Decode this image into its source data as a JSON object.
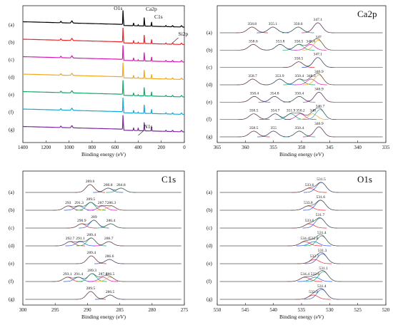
{
  "chart_data": [
    {
      "type": "line",
      "panel": "survey",
      "xlabel": "Binding energy (eV)",
      "xlim": [
        1400,
        0
      ],
      "xticks": [
        1400,
        1200,
        1000,
        800,
        600,
        400,
        200,
        0
      ],
      "rows": [
        "(a)",
        "(b)",
        "(c)",
        "(d)",
        "(e)",
        "(f)",
        "(g)"
      ],
      "series_colors": [
        "#000000",
        "#e8262b",
        "#d81ab4",
        "#f2a81d",
        "#12a86b",
        "#16a8d8",
        "#7a2aa0"
      ],
      "annotations": [
        {
          "text": "O1s",
          "x": 531
        },
        {
          "text": "Ca2p",
          "x": 347
        },
        {
          "text": "C1s",
          "x": 285
        },
        {
          "text": "Si2p",
          "x": 102
        },
        {
          "text": "N1s",
          "x": 400
        }
      ]
    },
    {
      "type": "line",
      "panel": "Ca2p",
      "title": "Ca2p",
      "xlabel": "Binding energy (eV)",
      "xlim": [
        365,
        335
      ],
      "xticks": [
        365,
        360,
        355,
        350,
        345,
        340,
        335
      ],
      "rows": [
        {
          "label": "(a)",
          "peaks": [
            "358.8",
            "355.1",
            "350.6",
            "347.1"
          ],
          "x": [
            358.8,
            355.1,
            350.6,
            347.1
          ]
        },
        {
          "label": "(b)",
          "peaks": [
            "358.6",
            "353.8",
            "350.5",
            "348.4",
            "347"
          ],
          "x": [
            358.6,
            353.8,
            350.5,
            348.4,
            347.0
          ]
        },
        {
          "label": "(c)",
          "peaks": [
            "350.5",
            "347.1"
          ],
          "x": [
            350.5,
            347.1
          ]
        },
        {
          "label": "(d)",
          "peaks": [
            "358.7",
            "353.9",
            "350.4",
            "348.3",
            "346.9"
          ],
          "x": [
            358.7,
            353.9,
            350.4,
            348.3,
            346.9
          ]
        },
        {
          "label": "(e)",
          "peaks": [
            "358.4",
            "354.8",
            "350.4",
            "346.9"
          ],
          "x": [
            358.4,
            354.8,
            350.4,
            346.9
          ]
        },
        {
          "label": "(f)",
          "peaks": [
            "358.5",
            "354.7",
            "351.9",
            "350.2",
            "348",
            "346.7"
          ],
          "x": [
            358.5,
            354.7,
            351.9,
            350.2,
            348.0,
            346.7
          ]
        },
        {
          "label": "(g)",
          "peaks": [
            "358.5",
            "355",
            "350.4",
            "346.9"
          ],
          "x": [
            358.5,
            355.0,
            350.4,
            346.9
          ]
        }
      ]
    },
    {
      "type": "line",
      "panel": "C1s",
      "title": "C1s",
      "xlabel": "Binding energy (eV)",
      "xlim": [
        300,
        275
      ],
      "xticks": [
        300,
        295,
        290,
        285,
        280,
        275
      ],
      "rows": [
        {
          "label": "(a)",
          "peaks": [
            "289.6",
            "286.8",
            "284.8"
          ],
          "x": [
            289.6,
            286.8,
            284.8
          ]
        },
        {
          "label": "(b)",
          "peaks": [
            "293",
            "291.3",
            "289.5",
            "287.7",
            "286.3"
          ],
          "x": [
            293.0,
            291.3,
            289.5,
            287.7,
            286.3
          ]
        },
        {
          "label": "(c)",
          "peaks": [
            "290.9",
            "289",
            "286.4"
          ],
          "x": [
            290.9,
            289.0,
            286.4
          ]
        },
        {
          "label": "(d)",
          "peaks": [
            "292.7",
            "291.1",
            "289.4",
            "286.7"
          ],
          "x": [
            292.7,
            291.1,
            289.4,
            286.7
          ]
        },
        {
          "label": "(e)",
          "peaks": [
            "289.4",
            "286.6"
          ],
          "x": [
            289.4,
            286.6
          ]
        },
        {
          "label": "(f)",
          "peaks": [
            "293.1",
            "291.4",
            "289.3",
            "287.6",
            "286.5"
          ],
          "x": [
            293.1,
            291.4,
            289.3,
            287.6,
            286.5
          ]
        },
        {
          "label": "(g)",
          "peaks": [
            "289.5",
            "286.5"
          ],
          "x": [
            289.5,
            286.5
          ]
        }
      ]
    },
    {
      "type": "line",
      "panel": "O1s",
      "title": "O1s",
      "xlabel": "Binding energy (eV)",
      "xlim": [
        550,
        520
      ],
      "xticks": [
        550,
        545,
        540,
        535,
        530,
        525,
        520
      ],
      "rows": [
        {
          "label": "(a)",
          "peaks": [
            "533.6",
            "531.5"
          ],
          "x": [
            533.6,
            531.5
          ]
        },
        {
          "label": "(b)",
          "peaks": [
            "533.8",
            "531.6"
          ],
          "x": [
            533.8,
            531.6
          ]
        },
        {
          "label": "(c)",
          "peaks": [
            "533.6",
            "531.7"
          ],
          "x": [
            533.6,
            531.7
          ]
        },
        {
          "label": "(d)",
          "peaks": [
            "534.4",
            "532.8",
            "531.4"
          ],
          "x": [
            534.4,
            532.8,
            531.4
          ]
        },
        {
          "label": "(e)",
          "peaks": [
            "532.7",
            "531.3"
          ],
          "x": [
            532.7,
            531.3
          ]
        },
        {
          "label": "(f)",
          "peaks": [
            "534.4",
            "532.6",
            "531.1"
          ],
          "x": [
            534.4,
            532.6,
            531.1
          ]
        },
        {
          "label": "(g)",
          "peaks": [
            "532.9",
            "531.4"
          ],
          "x": [
            532.9,
            531.4
          ]
        }
      ]
    }
  ]
}
